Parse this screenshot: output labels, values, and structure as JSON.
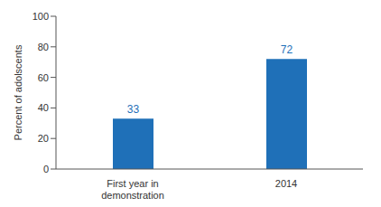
{
  "chart_data": {
    "type": "bar",
    "y_label": "Percent of adolscents",
    "categories": [
      "First year in demonstration",
      "2014"
    ],
    "values": [
      33,
      72
    ],
    "color": "#1f70b8",
    "ylim": [
      0,
      100
    ],
    "yticks": [
      0,
      20,
      40,
      60,
      80,
      100
    ],
    "grid": false,
    "data_labels": true
  }
}
